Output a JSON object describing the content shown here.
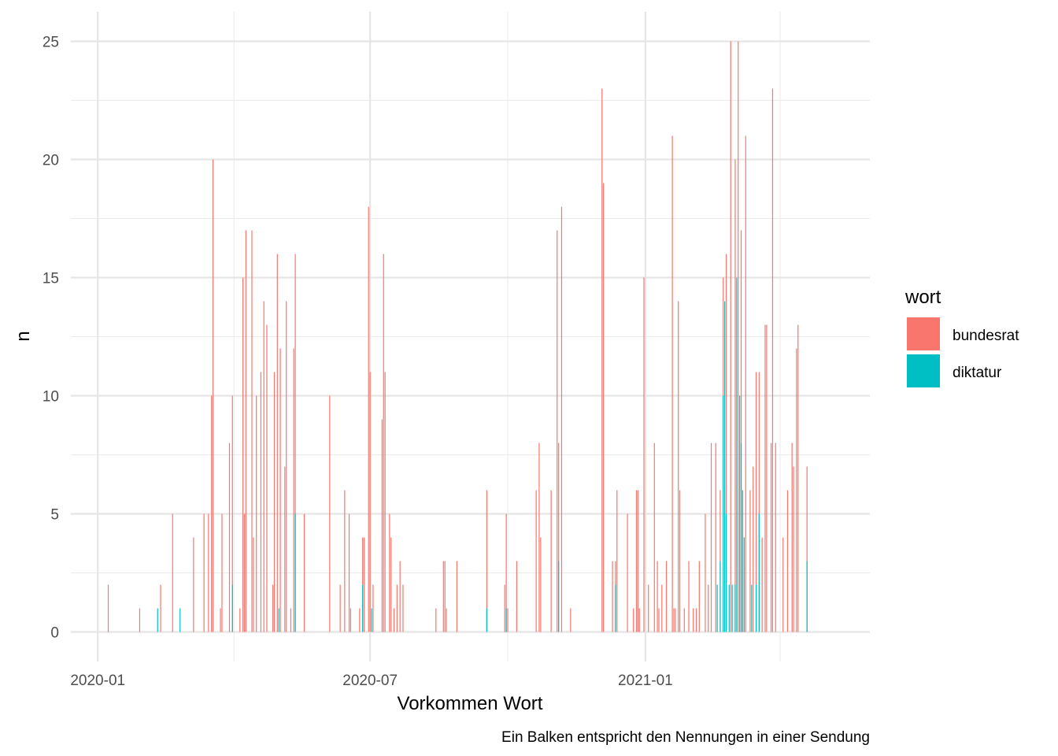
{
  "chart_data": {
    "type": "bar",
    "title": "",
    "xlabel": "Vorkommen Wort",
    "ylabel": "n",
    "caption": "Ein Balken entspricht den Nennungen in einer Sendung",
    "x_type": "date",
    "xlim": [
      "2019-12-14",
      "2021-05-31"
    ],
    "ylim": [
      -1.25,
      26.25
    ],
    "x_ticks": [
      {
        "date": "2020-01-01",
        "label": "2020-01"
      },
      {
        "date": "2020-07-01",
        "label": "2020-07"
      },
      {
        "date": "2021-01-01",
        "label": "2021-01"
      }
    ],
    "x_minor_ticks": [
      "2020-04-01",
      "2020-10-01",
      "2021-04-01"
    ],
    "y_ticks": [
      0,
      5,
      10,
      15,
      20,
      25
    ],
    "y_minor_ticks": [
      2.5,
      7.5,
      12.5,
      17.5,
      22.5
    ],
    "grid": true,
    "legend": {
      "title": "wort",
      "position": "right",
      "entries": [
        {
          "label": "bundesrat",
          "color": "#F8766D"
        },
        {
          "label": "diktatur",
          "color": "#00BFC4"
        }
      ]
    },
    "series": [
      {
        "name": "bundesrat",
        "color": "#F8766D",
        "points": [
          [
            "2020-01-08",
            2
          ],
          [
            "2020-01-29",
            1
          ],
          [
            "2020-02-12",
            2
          ],
          [
            "2020-02-20",
            5
          ],
          [
            "2020-03-05",
            4
          ],
          [
            "2020-03-12",
            5
          ],
          [
            "2020-03-15",
            5
          ],
          [
            "2020-03-17",
            10
          ],
          [
            "2020-03-18",
            20
          ],
          [
            "2020-03-23",
            1
          ],
          [
            "2020-03-24",
            5
          ],
          [
            "2020-03-29",
            8
          ],
          [
            "2020-03-31",
            10
          ],
          [
            "2020-04-05",
            1
          ],
          [
            "2020-04-07",
            15
          ],
          [
            "2020-04-08",
            5
          ],
          [
            "2020-04-09",
            17
          ],
          [
            "2020-04-13",
            17
          ],
          [
            "2020-04-14",
            4
          ],
          [
            "2020-04-16",
            10
          ],
          [
            "2020-04-19",
            11
          ],
          [
            "2020-04-21",
            14
          ],
          [
            "2020-04-23",
            13
          ],
          [
            "2020-04-27",
            2
          ],
          [
            "2020-04-28",
            11
          ],
          [
            "2020-04-30",
            16
          ],
          [
            "2020-05-02",
            12
          ],
          [
            "2020-05-05",
            7
          ],
          [
            "2020-05-06",
            14
          ],
          [
            "2020-05-09",
            1
          ],
          [
            "2020-05-11",
            12
          ],
          [
            "2020-05-12",
            16
          ],
          [
            "2020-05-18",
            5
          ],
          [
            "2020-06-04",
            10
          ],
          [
            "2020-06-11",
            2
          ],
          [
            "2020-06-14",
            6
          ],
          [
            "2020-06-17",
            5
          ],
          [
            "2020-06-18",
            1
          ],
          [
            "2020-06-24",
            1
          ],
          [
            "2020-06-26",
            4
          ],
          [
            "2020-06-27",
            4
          ],
          [
            "2020-06-30",
            18
          ],
          [
            "2020-07-01",
            11
          ],
          [
            "2020-07-03",
            2
          ],
          [
            "2020-07-09",
            9
          ],
          [
            "2020-07-10",
            16
          ],
          [
            "2020-07-11",
            11
          ],
          [
            "2020-07-14",
            5
          ],
          [
            "2020-07-15",
            4
          ],
          [
            "2020-07-17",
            1
          ],
          [
            "2020-07-19",
            2
          ],
          [
            "2020-07-21",
            3
          ],
          [
            "2020-07-23",
            2
          ],
          [
            "2020-08-14",
            1
          ],
          [
            "2020-08-19",
            3
          ],
          [
            "2020-08-20",
            3
          ],
          [
            "2020-08-21",
            1
          ],
          [
            "2020-08-28",
            3
          ],
          [
            "2020-09-17",
            6
          ],
          [
            "2020-09-29",
            2
          ],
          [
            "2020-09-30",
            5
          ],
          [
            "2020-10-01",
            1
          ],
          [
            "2020-10-07",
            3
          ],
          [
            "2020-10-20",
            6
          ],
          [
            "2020-10-22",
            8
          ],
          [
            "2020-10-23",
            4
          ],
          [
            "2020-10-30",
            6
          ],
          [
            "2020-11-03",
            17
          ],
          [
            "2020-11-04",
            8
          ],
          [
            "2020-11-06",
            18
          ],
          [
            "2020-11-12",
            1
          ],
          [
            "2020-12-03",
            23
          ],
          [
            "2020-12-04",
            19
          ],
          [
            "2020-12-10",
            3
          ],
          [
            "2020-12-12",
            3
          ],
          [
            "2020-12-13",
            6
          ],
          [
            "2020-12-20",
            5
          ],
          [
            "2020-12-24",
            1
          ],
          [
            "2020-12-26",
            6
          ],
          [
            "2020-12-27",
            6
          ],
          [
            "2020-12-28",
            1
          ],
          [
            "2020-12-31",
            15
          ],
          [
            "2021-01-03",
            2
          ],
          [
            "2021-01-07",
            8
          ],
          [
            "2021-01-09",
            3
          ],
          [
            "2021-01-10",
            1
          ],
          [
            "2021-01-12",
            2
          ],
          [
            "2021-01-15",
            3
          ],
          [
            "2021-01-19",
            21
          ],
          [
            "2021-01-20",
            1
          ],
          [
            "2021-01-21",
            1
          ],
          [
            "2021-01-23",
            14
          ],
          [
            "2021-01-24",
            6
          ],
          [
            "2021-01-27",
            1
          ],
          [
            "2021-01-30",
            3
          ],
          [
            "2021-02-02",
            1
          ],
          [
            "2021-02-04",
            1
          ],
          [
            "2021-02-06",
            3
          ],
          [
            "2021-02-10",
            5
          ],
          [
            "2021-02-12",
            2
          ],
          [
            "2021-02-14",
            8
          ],
          [
            "2021-02-17",
            8
          ],
          [
            "2021-02-20",
            6
          ],
          [
            "2021-02-22",
            15
          ],
          [
            "2021-02-24",
            16
          ],
          [
            "2021-02-27",
            25
          ],
          [
            "2021-03-02",
            20
          ],
          [
            "2021-03-04",
            25
          ],
          [
            "2021-03-06",
            17
          ],
          [
            "2021-03-09",
            21
          ],
          [
            "2021-03-12",
            6
          ],
          [
            "2021-03-14",
            7
          ],
          [
            "2021-03-16",
            11
          ],
          [
            "2021-03-18",
            11
          ],
          [
            "2021-03-20",
            4
          ],
          [
            "2021-03-22",
            13
          ],
          [
            "2021-03-23",
            13
          ],
          [
            "2021-03-26",
            8
          ],
          [
            "2021-03-27",
            23
          ],
          [
            "2021-03-29",
            8
          ],
          [
            "2021-04-03",
            4
          ],
          [
            "2021-04-06",
            6
          ],
          [
            "2021-04-09",
            8
          ],
          [
            "2021-04-10",
            7
          ],
          [
            "2021-04-12",
            12
          ],
          [
            "2021-04-13",
            13
          ],
          [
            "2021-04-19",
            7
          ]
        ]
      },
      {
        "name": "diktatur",
        "color": "#00BFC4",
        "points": [
          [
            "2020-02-10",
            1
          ],
          [
            "2020-02-25",
            1
          ],
          [
            "2020-03-31",
            2
          ],
          [
            "2020-05-01",
            1
          ],
          [
            "2020-05-12",
            5
          ],
          [
            "2020-06-26",
            2
          ],
          [
            "2020-07-02",
            1
          ],
          [
            "2020-09-17",
            1
          ],
          [
            "2020-09-30",
            1
          ],
          [
            "2020-11-04",
            3
          ],
          [
            "2020-12-12",
            2
          ],
          [
            "2021-02-18",
            2
          ],
          [
            "2021-02-20",
            3
          ],
          [
            "2021-02-22",
            10
          ],
          [
            "2021-02-23",
            14
          ],
          [
            "2021-02-24",
            5
          ],
          [
            "2021-02-26",
            2
          ],
          [
            "2021-02-28",
            2
          ],
          [
            "2021-03-02",
            2
          ],
          [
            "2021-03-03",
            15
          ],
          [
            "2021-03-05",
            10
          ],
          [
            "2021-03-06",
            8
          ],
          [
            "2021-03-07",
            6
          ],
          [
            "2021-03-08",
            4
          ],
          [
            "2021-03-13",
            2
          ],
          [
            "2021-03-16",
            2
          ],
          [
            "2021-03-18",
            5
          ],
          [
            "2021-04-19",
            3
          ]
        ]
      }
    ]
  }
}
